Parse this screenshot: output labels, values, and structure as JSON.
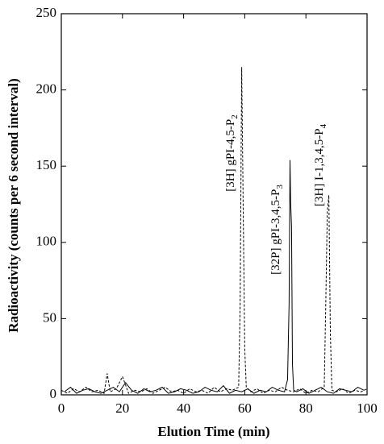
{
  "chart_data": {
    "type": "line",
    "xlabel": "Elution Time (min)",
    "ylabel": "Radioactivity (counts per 6 second interval)",
    "xlim": [
      0,
      100
    ],
    "xticks": [
      0,
      20,
      40,
      60,
      80,
      100
    ],
    "ylim": [
      0,
      250
    ],
    "yticks": [
      0,
      50,
      100,
      150,
      200,
      250
    ],
    "series": [
      {
        "color": "#000000",
        "dash": true,
        "x": [
          0,
          2,
          4,
          6,
          8,
          10,
          12,
          14,
          15,
          16,
          18,
          20,
          22,
          24,
          26,
          28,
          30,
          32,
          34,
          36,
          38,
          40,
          42,
          44,
          46,
          48,
          50,
          52,
          54,
          56,
          58,
          58.5,
          59,
          59.5,
          60,
          60.5,
          62,
          64,
          66,
          68,
          70,
          72,
          74,
          76,
          78,
          80,
          82,
          84,
          86,
          86.5,
          87,
          87.5,
          88,
          88.5,
          90,
          92,
          94,
          96,
          98,
          100
        ],
        "values": [
          3,
          1,
          4,
          2,
          5,
          2,
          3,
          1,
          14,
          2,
          4,
          12,
          1,
          3,
          2,
          4,
          1,
          3,
          5,
          2,
          3,
          1,
          4,
          2,
          3,
          1,
          5,
          2,
          4,
          3,
          5,
          60,
          215,
          120,
          30,
          5,
          2,
          4,
          1,
          3,
          2,
          5,
          3,
          2,
          4,
          1,
          3,
          2,
          5,
          60,
          120,
          131,
          40,
          3,
          2,
          4,
          1,
          3,
          2,
          4
        ]
      },
      {
        "color": "#000000",
        "dash": false,
        "x": [
          1,
          3,
          5,
          7,
          9,
          11,
          13,
          15,
          17,
          19,
          21,
          23,
          25,
          27,
          29,
          31,
          33,
          35,
          37,
          39,
          41,
          43,
          45,
          47,
          49,
          51,
          53,
          55,
          57,
          59,
          61,
          63,
          65,
          67,
          69,
          71,
          73,
          74,
          74.5,
          74.8,
          75,
          75.3,
          75.6,
          76,
          77,
          79,
          81,
          83,
          85,
          87,
          89,
          91,
          93,
          95,
          97,
          99
        ],
        "values": [
          2,
          5,
          1,
          3,
          4,
          2,
          1,
          3,
          5,
          2,
          8,
          3,
          1,
          4,
          2,
          3,
          5,
          1,
          2,
          4,
          3,
          1,
          2,
          5,
          3,
          2,
          6,
          1,
          3,
          2,
          4,
          1,
          3,
          2,
          5,
          3,
          2,
          10,
          60,
          154,
          127,
          110,
          20,
          3,
          2,
          4,
          1,
          3,
          5,
          2,
          1,
          4,
          3,
          2,
          5,
          3
        ]
      }
    ],
    "annotations": [
      {
        "text": "[3H] gPI-4,5-P",
        "sub": "2"
      },
      {
        "text": "[32P] gPI-3,4,5-P",
        "sub": "3"
      },
      {
        "text": "[3H] I-1,3,4,5-P",
        "sub": "4"
      }
    ]
  }
}
